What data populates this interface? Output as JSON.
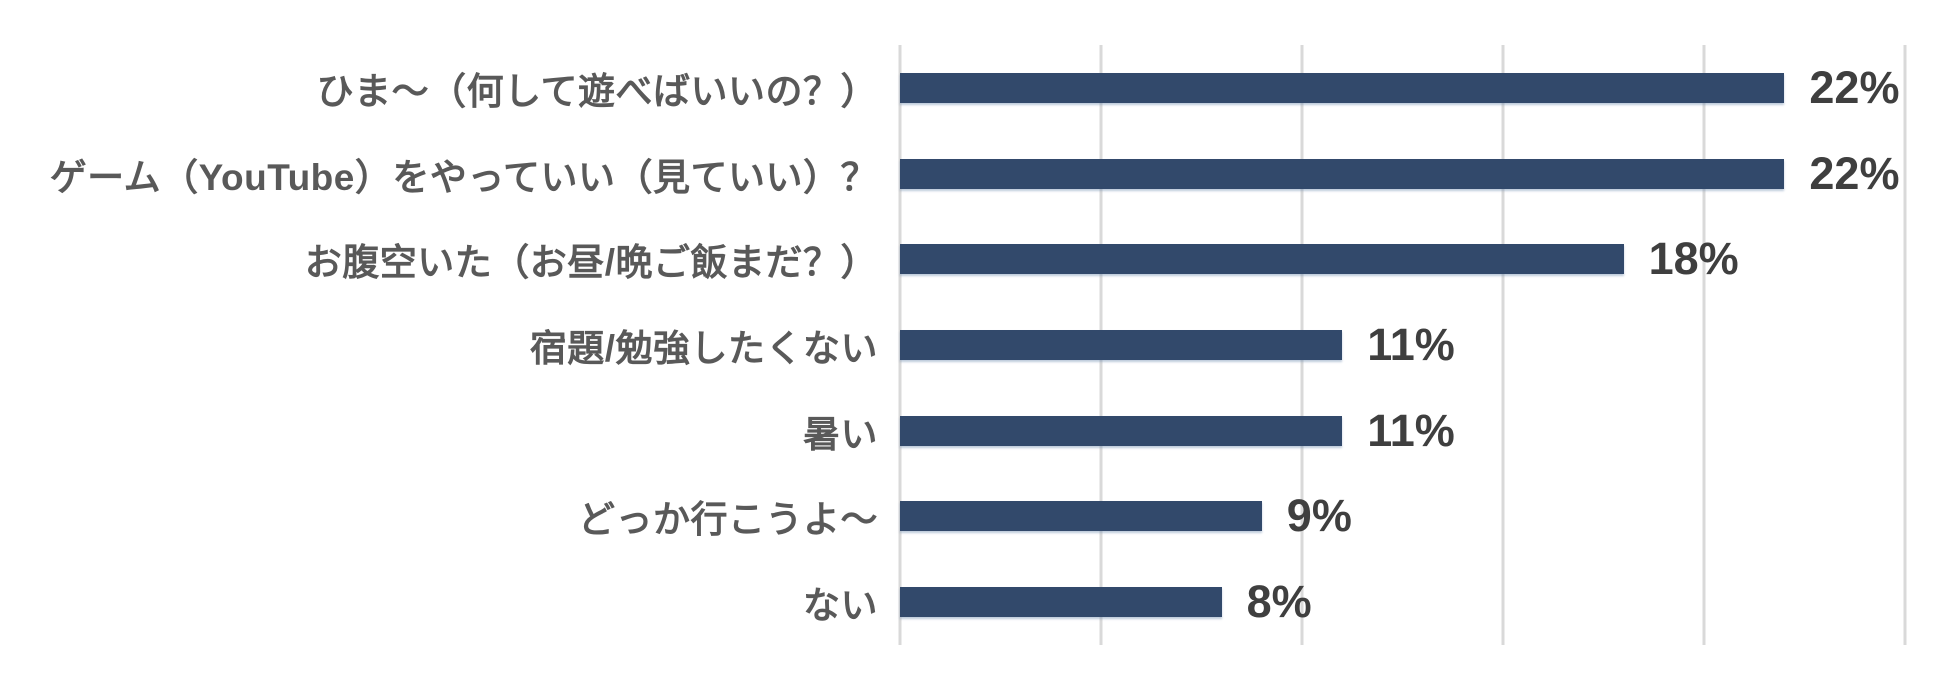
{
  "chart_data": {
    "type": "bar",
    "orientation": "horizontal",
    "title": "",
    "xlabel": "",
    "ylabel": "",
    "xlim": [
      0,
      25
    ],
    "gridline_interval": 5,
    "grid": true,
    "legend": false,
    "categories": [
      "ひま〜（何して遊べばいいの？）",
      "ゲーム（YouTube）をやっていい（見ていい）？",
      "お腹空いた（お昼/晩ご飯まだ？）",
      "宿題/勉強したくない",
      "暑い",
      "どっか行こうよ〜",
      "ない"
    ],
    "values": [
      22,
      22,
      18,
      11,
      11,
      9,
      8
    ],
    "value_labels": [
      "22%",
      "22%",
      "18%",
      "11%",
      "11%",
      "9%",
      "8%"
    ]
  },
  "style": {
    "bar_color": "#32496b",
    "gridline_color": "#d9d9d9",
    "label_color": "#595959",
    "value_color": "#3f3f3f",
    "background": "#ffffff"
  }
}
